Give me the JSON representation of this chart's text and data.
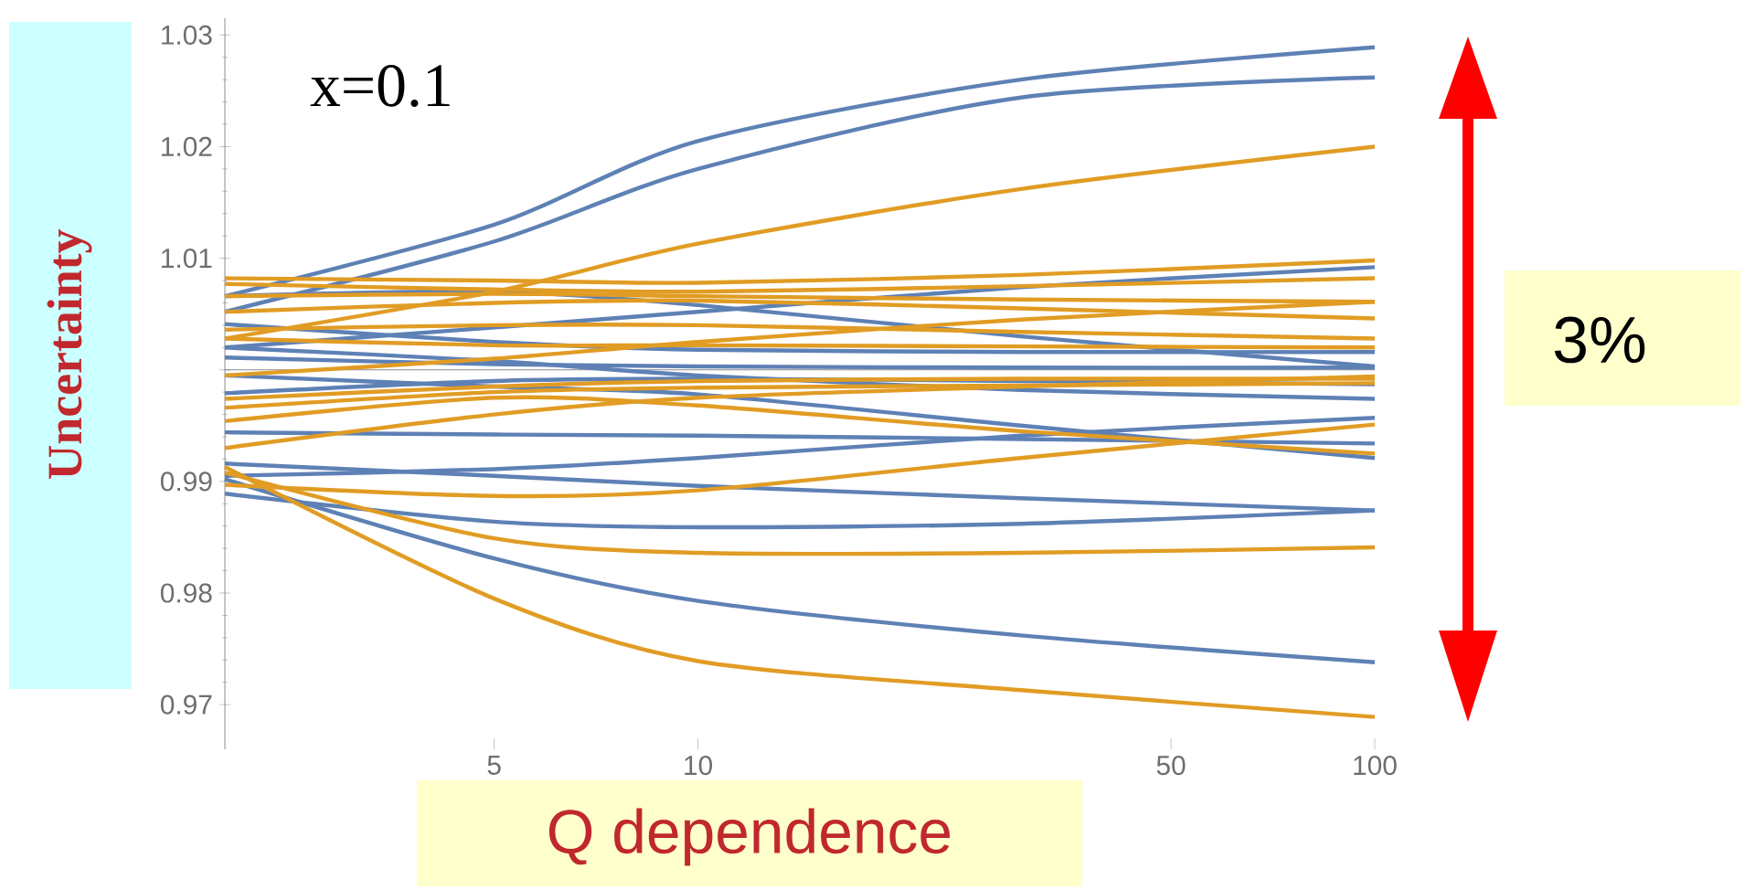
{
  "chart_data": {
    "type": "line",
    "xlabel": "Q dependence",
    "ylabel": "Uncertainty",
    "annotations": [
      "x=0.1",
      "3%"
    ],
    "log": "x",
    "xlim": [
      2,
      100
    ],
    "ylim": [
      0.966,
      1.0315
    ],
    "xticks": [
      5,
      10,
      50,
      100
    ],
    "yticks": [
      0.97,
      0.98,
      0.99,
      {
        "value": 1.0,
        "label": null
      },
      1.01,
      1.02,
      1.03
    ],
    "x": [
      2,
      5,
      10,
      30,
      100
    ],
    "series": [
      {
        "color": "#5e81b5",
        "values": [
          1.0066,
          1.013,
          1.0205,
          1.026,
          1.0289
        ]
      },
      {
        "color": "#5e81b5",
        "values": [
          1.0052,
          1.0115,
          1.018,
          1.0244,
          1.0262
        ]
      },
      {
        "color": "#5e81b5",
        "values": [
          1.002,
          1.0038,
          1.0052,
          1.0074,
          1.0092
        ]
      },
      {
        "color": "#5e81b5",
        "values": [
          1.0066,
          1.007,
          1.0058,
          1.003,
          1.0003
        ]
      },
      {
        "color": "#5e81b5",
        "values": [
          1.0041,
          1.0025,
          1.0018,
          1.0016,
          1.0016
        ]
      },
      {
        "color": "#5e81b5",
        "values": [
          1.0011,
          1.0005,
          1.0003,
          1.0002,
          1.0002
        ]
      },
      {
        "color": "#5e81b5",
        "values": [
          0.9979,
          0.999,
          0.9992,
          0.999,
          0.9987
        ]
      },
      {
        "color": "#5e81b5",
        "values": [
          1.002,
          1.0008,
          0.9995,
          0.9982,
          0.9974
        ]
      },
      {
        "color": "#5e81b5",
        "values": [
          0.9944,
          0.9942,
          0.9941,
          0.9938,
          0.9934
        ]
      },
      {
        "color": "#5e81b5",
        "values": [
          0.9905,
          0.9911,
          0.9921,
          0.9941,
          0.9957
        ]
      },
      {
        "color": "#5e81b5",
        "values": [
          0.9916,
          0.9905,
          0.9896,
          0.9885,
          0.9874
        ]
      },
      {
        "color": "#5e81b5",
        "values": [
          0.9889,
          0.9864,
          0.9859,
          0.9862,
          0.9874
        ]
      },
      {
        "color": "#5e81b5",
        "values": [
          0.9902,
          0.9831,
          0.9793,
          0.9762,
          0.9738
        ]
      },
      {
        "color": "#5e81b5",
        "values": [
          0.9995,
          0.9985,
          0.9978,
          0.995,
          0.9921
        ]
      },
      {
        "color": "#e19c24",
        "values": [
          1.0028,
          1.007,
          1.0113,
          1.0162,
          1.02
        ]
      },
      {
        "color": "#e19c24",
        "values": [
          1.0082,
          1.008,
          1.0078,
          1.0085,
          1.0098
        ]
      },
      {
        "color": "#e19c24",
        "values": [
          1.0077,
          1.0072,
          1.007,
          1.0075,
          1.0082
        ]
      },
      {
        "color": "#e19c24",
        "values": [
          1.0066,
          1.0068,
          1.0066,
          1.0063,
          1.0061
        ]
      },
      {
        "color": "#e19c24",
        "values": [
          1.0052,
          1.006,
          1.0062,
          1.0055,
          1.0046
        ]
      },
      {
        "color": "#e19c24",
        "values": [
          1.0036,
          1.004,
          1.004,
          1.0034,
          1.0028
        ]
      },
      {
        "color": "#e19c24",
        "values": [
          1.0028,
          1.0022,
          1.0022,
          1.0021,
          1.002
        ]
      },
      {
        "color": "#e19c24",
        "values": [
          0.9995,
          1.001,
          1.0025,
          1.0045,
          1.0061
        ]
      },
      {
        "color": "#e19c24",
        "values": [
          0.9974,
          0.9985,
          0.999,
          0.9992,
          0.9992
        ]
      },
      {
        "color": "#e19c24",
        "values": [
          0.9966,
          0.998,
          0.9984,
          0.9986,
          0.9988
        ]
      },
      {
        "color": "#e19c24",
        "values": [
          0.9954,
          0.9975,
          0.9968,
          0.9945,
          0.9925
        ]
      },
      {
        "color": "#e19c24",
        "values": [
          0.9897,
          0.9887,
          0.9892,
          0.9921,
          0.9951
        ]
      },
      {
        "color": "#e19c24",
        "values": [
          0.9908,
          0.9849,
          0.9836,
          0.9836,
          0.9841
        ]
      },
      {
        "color": "#e19c24",
        "values": [
          0.9913,
          0.9795,
          0.9739,
          0.9713,
          0.9689
        ]
      },
      {
        "color": "#e19c24",
        "values": [
          0.993,
          0.996,
          0.9975,
          0.9985,
          0.9994
        ]
      }
    ]
  }
}
